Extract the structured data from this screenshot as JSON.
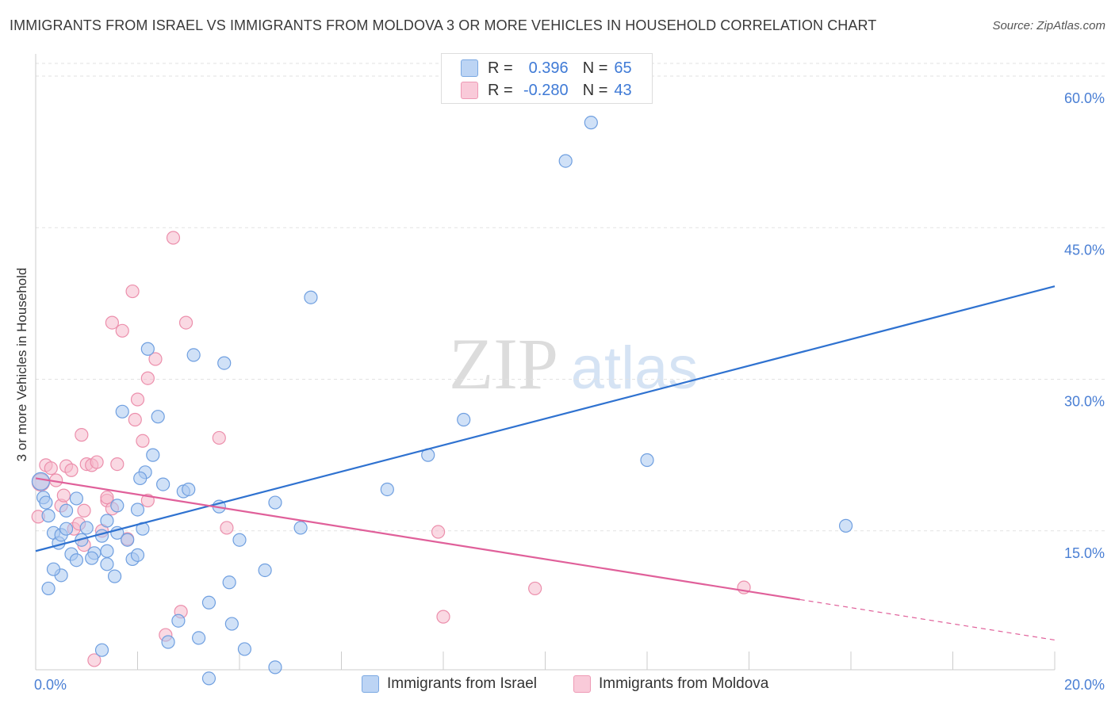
{
  "title": "IMMIGRANTS FROM ISRAEL VS IMMIGRANTS FROM MOLDOVA 3 OR MORE VEHICLES IN HOUSEHOLD CORRELATION CHART",
  "source": "Source: ZipAtlas.com",
  "watermark": {
    "zip": "ZIP",
    "atlas": "atlas"
  },
  "legend": {
    "r_label": "R =",
    "n_label": "N =",
    "israel": {
      "r": "0.396",
      "n": "65"
    },
    "moldova": {
      "r": "-0.280",
      "n": "43"
    }
  },
  "colors": {
    "israel_fill": "#aac8f0",
    "israel_stroke": "#6f9fe0",
    "israel_line": "#2f72d0",
    "moldova_fill": "#f6b9cc",
    "moldova_stroke": "#ec8fac",
    "moldova_line": "#e0609a",
    "tick_text": "#4a7fd4"
  },
  "chart_data": {
    "type": "scatter",
    "title": "IMMIGRANTS FROM ISRAEL VS IMMIGRANTS FROM MOLDOVA 3 OR MORE VEHICLES IN HOUSEHOLD CORRELATION CHART",
    "xlabel": "",
    "ylabel": "3 or more Vehicles in Household",
    "xlim": [
      0,
      20
    ],
    "ylim": [
      0,
      60
    ],
    "x_tick_labels": {
      "min": "0.0%",
      "max": "20.0%"
    },
    "y_ticks": [
      15,
      30,
      45,
      60
    ],
    "y_tick_labels": [
      "15.0%",
      "30.0%",
      "45.0%",
      "60.0%"
    ],
    "legend_position": "top-center",
    "series": [
      {
        "name": "Immigrants from Israel",
        "key": "israel",
        "trend": {
          "x0": 0,
          "y0": 13.0,
          "x1": 20,
          "y1": 39.2,
          "solid_to": 20
        },
        "points": [
          [
            0.1,
            19.9
          ],
          [
            0.15,
            18.3
          ],
          [
            0.2,
            17.8
          ],
          [
            0.25,
            16.5
          ],
          [
            0.35,
            14.8
          ],
          [
            0.45,
            13.8
          ],
          [
            0.5,
            14.6
          ],
          [
            0.6,
            15.2
          ],
          [
            0.7,
            12.7
          ],
          [
            0.8,
            12.1
          ],
          [
            0.9,
            14.1
          ],
          [
            1.0,
            15.3
          ],
          [
            1.15,
            12.8
          ],
          [
            1.3,
            14.5
          ],
          [
            1.4,
            11.7
          ],
          [
            1.55,
            10.5
          ],
          [
            1.9,
            12.2
          ],
          [
            2.0,
            12.6
          ],
          [
            2.1,
            15.2
          ],
          [
            2.15,
            20.8
          ],
          [
            2.3,
            22.5
          ],
          [
            2.5,
            19.6
          ],
          [
            2.4,
            26.3
          ],
          [
            2.9,
            18.9
          ],
          [
            3.0,
            19.1
          ],
          [
            2.2,
            33.0
          ],
          [
            1.7,
            26.8
          ],
          [
            3.1,
            32.4
          ],
          [
            3.7,
            31.6
          ],
          [
            3.6,
            17.4
          ],
          [
            4.0,
            14.1
          ],
          [
            4.5,
            11.1
          ],
          [
            4.7,
            17.8
          ],
          [
            5.4,
            38.1
          ],
          [
            5.2,
            15.3
          ],
          [
            6.9,
            19.1
          ],
          [
            7.7,
            22.5
          ],
          [
            8.4,
            26.0
          ],
          [
            10.4,
            51.6
          ],
          [
            10.9,
            55.4
          ],
          [
            12.0,
            22.0
          ],
          [
            15.9,
            15.5
          ],
          [
            0.25,
            9.3
          ],
          [
            0.5,
            10.6
          ],
          [
            1.6,
            14.8
          ],
          [
            2.0,
            17.1
          ],
          [
            1.4,
            13.0
          ],
          [
            1.8,
            14.1
          ],
          [
            3.4,
            7.9
          ],
          [
            3.8,
            9.9
          ],
          [
            2.8,
            6.1
          ],
          [
            3.2,
            4.4
          ],
          [
            3.85,
            5.8
          ],
          [
            4.1,
            3.3
          ],
          [
            4.7,
            1.5
          ],
          [
            2.6,
            4.0
          ],
          [
            3.4,
            0.4
          ],
          [
            1.3,
            3.2
          ],
          [
            0.8,
            18.2
          ],
          [
            1.6,
            17.5
          ],
          [
            0.6,
            17.0
          ],
          [
            1.4,
            16.0
          ],
          [
            2.05,
            20.2
          ],
          [
            1.1,
            12.3
          ],
          [
            0.35,
            11.2
          ]
        ]
      },
      {
        "name": "Immigrants from Moldova",
        "key": "moldova",
        "trend": {
          "x0": 0,
          "y0": 20.2,
          "x1": 20,
          "y1": 4.2,
          "solid_to": 15.0
        },
        "points": [
          [
            0.1,
            19.8
          ],
          [
            0.05,
            16.4
          ],
          [
            0.2,
            21.5
          ],
          [
            0.3,
            21.2
          ],
          [
            0.4,
            20.0
          ],
          [
            0.5,
            17.5
          ],
          [
            0.55,
            18.5
          ],
          [
            0.6,
            21.4
          ],
          [
            0.7,
            21.0
          ],
          [
            0.75,
            15.2
          ],
          [
            0.85,
            15.7
          ],
          [
            0.9,
            24.5
          ],
          [
            0.95,
            17.0
          ],
          [
            1.0,
            21.6
          ],
          [
            1.1,
            21.5
          ],
          [
            1.2,
            21.8
          ],
          [
            1.3,
            15.0
          ],
          [
            1.4,
            18.0
          ],
          [
            1.5,
            17.2
          ],
          [
            1.6,
            21.6
          ],
          [
            1.7,
            34.8
          ],
          [
            1.5,
            35.6
          ],
          [
            1.9,
            38.7
          ],
          [
            2.0,
            28.0
          ],
          [
            1.95,
            26.0
          ],
          [
            2.1,
            23.9
          ],
          [
            2.2,
            30.1
          ],
          [
            2.35,
            32.0
          ],
          [
            2.2,
            18.0
          ],
          [
            2.7,
            44.0
          ],
          [
            2.95,
            35.6
          ],
          [
            3.6,
            24.2
          ],
          [
            3.75,
            15.3
          ],
          [
            1.8,
            14.2
          ],
          [
            2.85,
            7.0
          ],
          [
            2.55,
            4.7
          ],
          [
            1.15,
            2.2
          ],
          [
            0.95,
            13.6
          ],
          [
            7.9,
            14.9
          ],
          [
            9.8,
            9.3
          ],
          [
            13.9,
            9.4
          ],
          [
            8.0,
            6.5
          ],
          [
            1.4,
            18.3
          ]
        ]
      }
    ]
  }
}
